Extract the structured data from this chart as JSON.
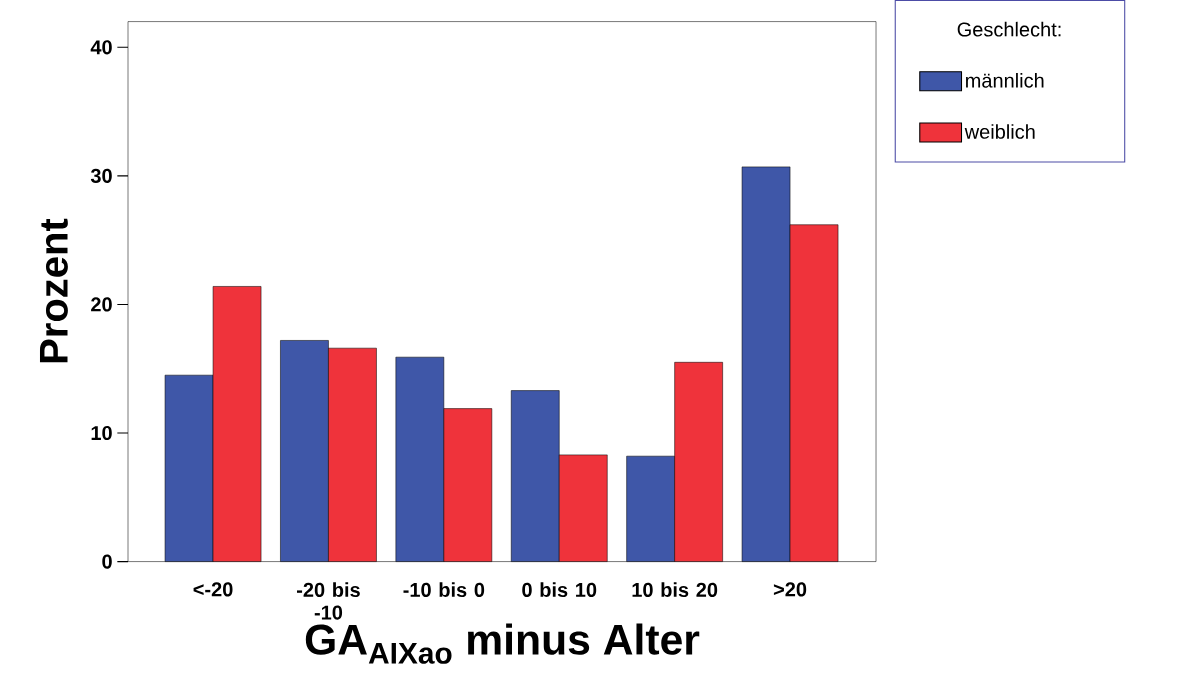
{
  "chart_data": {
    "type": "bar",
    "xlabel": "GA$_{AIXao}$ minus Alter",
    "ylabel": "Prozent",
    "legend_title": "Geschlecht:",
    "categories": [
      "<-20",
      "-20 bis -10",
      "-10 bis 0",
      "0 bis 10",
      "10 bis 20",
      ">20"
    ],
    "series": [
      {
        "name": "männlich",
        "color": "#3f57a8",
        "values": [
          14.5,
          17.2,
          15.9,
          13.3,
          8.2,
          30.7
        ]
      },
      {
        "name": "weiblich",
        "color": "#ef333b",
        "values": [
          21.4,
          16.6,
          11.9,
          8.3,
          15.5,
          26.2
        ]
      }
    ],
    "ylim": [
      0,
      42
    ],
    "yticks": [
      0,
      10,
      20,
      30,
      40
    ],
    "grid": false,
    "legend": "top right"
  }
}
